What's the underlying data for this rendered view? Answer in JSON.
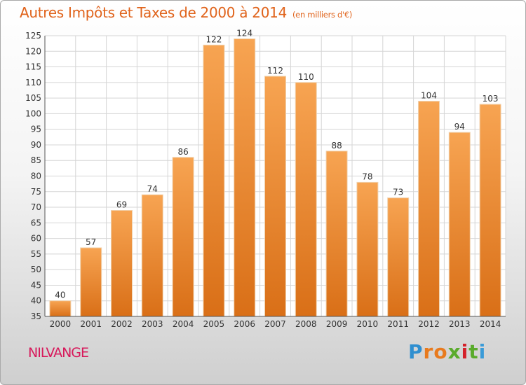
{
  "title": "Autres Impôts et Taxes de 2000 à 2014",
  "subtitle": "(en milliers d'€)",
  "place": "NILVANGE",
  "logo": {
    "text": "Proxiti",
    "letters": [
      "P",
      "r",
      "o",
      "x",
      "i",
      "t",
      "i"
    ],
    "colors": [
      "#2f8fd0",
      "#e87a1d",
      "#e87a1d",
      "#5aab2c",
      "#d4202a",
      "#5aab2c",
      "#3a9bd8"
    ]
  },
  "colors": {
    "accent": "#e0631b",
    "bar_top": "#f7a452",
    "bar_bottom": "#d96f17",
    "bar_border": "#f0d2ae",
    "place": "#d7195b"
  },
  "chart_data": {
    "type": "bar",
    "categories": [
      "2000",
      "2001",
      "2002",
      "2003",
      "2004",
      "2005",
      "2006",
      "2007",
      "2008",
      "2009",
      "2010",
      "2011",
      "2012",
      "2013",
      "2014"
    ],
    "values": [
      40,
      57,
      69,
      74,
      86,
      122,
      124,
      112,
      110,
      88,
      78,
      73,
      104,
      94,
      103
    ],
    "data_labels": [
      "40",
      "57",
      "69",
      "74",
      "86",
      "122",
      "124",
      "112",
      "110",
      "88",
      "78",
      "73",
      "104",
      "94",
      "103"
    ],
    "ylim": [
      35,
      125
    ],
    "yticks": [
      35,
      40,
      45,
      50,
      55,
      60,
      65,
      70,
      75,
      80,
      85,
      90,
      95,
      100,
      105,
      110,
      115,
      120,
      125
    ],
    "grid": true,
    "legend": "none"
  }
}
